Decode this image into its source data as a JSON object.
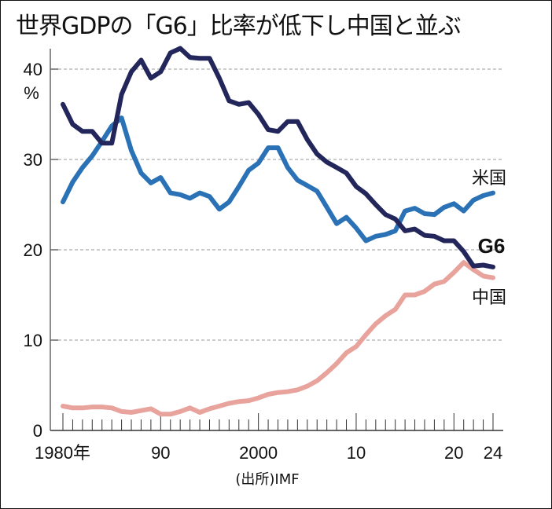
{
  "chart_data": {
    "type": "line",
    "title": "世界GDPの「G6」比率が低下し中国と並ぶ",
    "xlabel": "",
    "ylabel": "%",
    "ylim": [
      0,
      42
    ],
    "xlim": [
      1980,
      2024
    ],
    "grid": true,
    "source": "(出所)IMF",
    "y_ticks": [
      {
        "value": 0,
        "label": "0"
      },
      {
        "value": 10,
        "label": "10"
      },
      {
        "value": 20,
        "label": "20"
      },
      {
        "value": 30,
        "label": "30"
      },
      {
        "value": 40,
        "label": "40"
      }
    ],
    "x_ticks": [
      {
        "value": 1980,
        "label": "1980年"
      },
      {
        "value": 1990,
        "label": "90"
      },
      {
        "value": 2000,
        "label": "2000"
      },
      {
        "value": 2010,
        "label": "10"
      },
      {
        "value": 2020,
        "label": "20"
      },
      {
        "value": 2024,
        "label": "24"
      }
    ],
    "x": [
      1980,
      1981,
      1982,
      1983,
      1984,
      1985,
      1986,
      1987,
      1988,
      1989,
      1990,
      1991,
      1992,
      1993,
      1994,
      1995,
      1996,
      1997,
      1998,
      1999,
      2000,
      2001,
      2002,
      2003,
      2004,
      2005,
      2006,
      2007,
      2008,
      2009,
      2010,
      2011,
      2012,
      2013,
      2014,
      2015,
      2016,
      2017,
      2018,
      2019,
      2020,
      2021,
      2022,
      2023,
      2024
    ],
    "series": [
      {
        "name": "米国",
        "color": "#2a72b5",
        "values": [
          25.3,
          27.5,
          29.1,
          30.4,
          32.0,
          33.7,
          34.6,
          31.0,
          28.5,
          27.4,
          28.0,
          26.3,
          26.1,
          25.7,
          26.3,
          25.9,
          24.5,
          25.3,
          27.0,
          28.8,
          29.6,
          31.3,
          31.3,
          29.1,
          27.7,
          27.1,
          26.5,
          24.7,
          22.9,
          23.6,
          22.4,
          21.0,
          21.5,
          21.7,
          22.1,
          24.3,
          24.6,
          24.0,
          23.9,
          24.7,
          25.1,
          24.3,
          25.5,
          26.0,
          26.3
        ]
      },
      {
        "name": "G6",
        "color": "#22265a",
        "values": [
          36.1,
          33.9,
          33.1,
          33.1,
          31.8,
          31.8,
          37.2,
          39.7,
          41.0,
          39.0,
          39.7,
          41.8,
          42.3,
          41.3,
          41.2,
          41.2,
          39.0,
          36.5,
          36.1,
          36.3,
          35.0,
          33.3,
          33.1,
          34.2,
          34.2,
          32.2,
          30.6,
          29.7,
          29.1,
          28.5,
          27.0,
          26.2,
          25.0,
          23.9,
          23.4,
          22.1,
          22.3,
          21.6,
          21.5,
          21.0,
          21.0,
          19.8,
          18.2,
          18.3,
          18.1
        ]
      },
      {
        "name": "中国",
        "color": "#e8a39d",
        "values": [
          2.7,
          2.5,
          2.5,
          2.6,
          2.6,
          2.5,
          2.1,
          2.0,
          2.2,
          2.4,
          1.8,
          1.8,
          2.1,
          2.5,
          2.0,
          2.4,
          2.7,
          3.0,
          3.2,
          3.3,
          3.6,
          4.0,
          4.2,
          4.3,
          4.5,
          4.9,
          5.5,
          6.4,
          7.4,
          8.6,
          9.3,
          10.6,
          11.8,
          12.7,
          13.4,
          15.0,
          15.0,
          15.4,
          16.2,
          16.5,
          17.5,
          18.6,
          17.8,
          17.1,
          16.9
        ]
      }
    ],
    "legend": "direct-labels-right"
  }
}
